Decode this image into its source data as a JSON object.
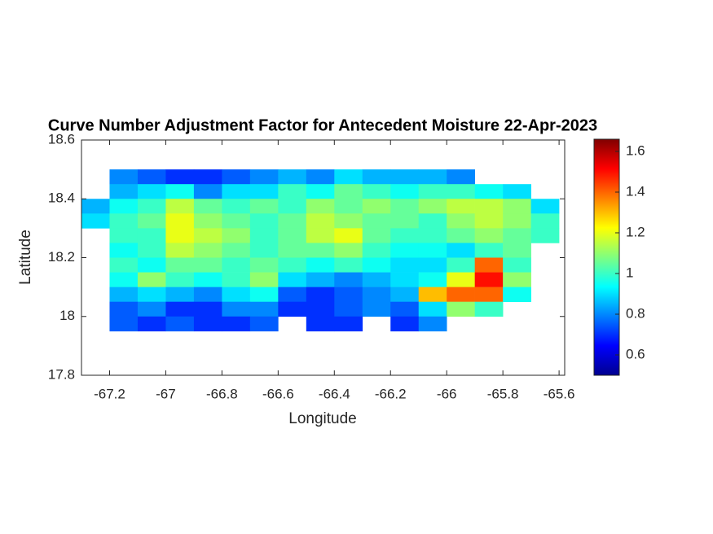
{
  "chart_data": {
    "type": "heatmap",
    "title": "Curve Number Adjustment Factor for Antecedent Moisture 22-Apr-2023",
    "x_label": "Longitude",
    "y_label": "Latitude",
    "colormap": "jet",
    "xlim": [
      -67.3,
      -65.58
    ],
    "ylim": [
      17.8,
      18.6
    ],
    "xticks": [
      -67.2,
      -67,
      -66.8,
      -66.6,
      -66.4,
      -66.2,
      -66,
      -65.8,
      -65.6
    ],
    "yticks": [
      17.8,
      18,
      18.2,
      18.4,
      18.6
    ],
    "clim": [
      0.5,
      1.66
    ],
    "cticks": [
      0.6,
      0.8,
      1,
      1.2,
      1.4,
      1.6
    ],
    "x": [
      -67.25,
      -67.15,
      -67.05,
      -66.95,
      -66.85,
      -66.75,
      -66.65,
      -66.55,
      -66.45,
      -66.35,
      -66.25,
      -66.15,
      -66.05,
      -65.95,
      -65.85,
      -65.75,
      -65.65
    ],
    "y": [
      18.475,
      18.425,
      18.375,
      18.325,
      18.275,
      18.225,
      18.175,
      18.125,
      18.075,
      18.025,
      17.975
    ],
    "z": [
      [
        null,
        0.8,
        0.75,
        0.7,
        0.7,
        0.75,
        0.8,
        0.85,
        0.8,
        0.9,
        0.85,
        0.85,
        0.85,
        0.8,
        null,
        null,
        null
      ],
      [
        null,
        0.85,
        0.9,
        0.95,
        0.8,
        0.9,
        0.9,
        1.0,
        0.95,
        1.05,
        1.0,
        0.95,
        1.0,
        1.0,
        0.95,
        0.9,
        null
      ],
      [
        0.85,
        0.95,
        1.0,
        1.15,
        1.05,
        1.0,
        1.05,
        1.0,
        1.1,
        1.05,
        1.1,
        1.05,
        1.1,
        1.15,
        1.15,
        1.1,
        0.9
      ],
      [
        0.9,
        1.0,
        1.05,
        1.2,
        1.1,
        1.05,
        1.0,
        1.05,
        1.15,
        1.1,
        1.05,
        1.05,
        1.0,
        1.1,
        1.15,
        1.1,
        1.0
      ],
      [
        null,
        1.0,
        1.0,
        1.2,
        1.15,
        1.1,
        1.0,
        1.05,
        1.15,
        1.2,
        1.05,
        1.0,
        1.0,
        1.05,
        1.1,
        1.05,
        1.0
      ],
      [
        null,
        0.95,
        1.0,
        1.15,
        1.1,
        1.05,
        1.0,
        1.05,
        1.05,
        1.1,
        1.0,
        0.95,
        0.95,
        0.9,
        1.0,
        1.05,
        null
      ],
      [
        null,
        1.0,
        0.95,
        1.05,
        1.05,
        1.0,
        1.05,
        1.0,
        0.95,
        1.0,
        0.95,
        0.9,
        0.9,
        1.0,
        1.4,
        1.0,
        null
      ],
      [
        null,
        0.95,
        1.1,
        1.0,
        0.95,
        1.0,
        1.1,
        0.9,
        0.85,
        0.8,
        0.85,
        0.9,
        0.95,
        1.2,
        1.5,
        1.1,
        null
      ],
      [
        null,
        0.85,
        0.9,
        0.85,
        0.8,
        0.9,
        0.95,
        0.75,
        0.7,
        0.75,
        0.8,
        0.85,
        1.3,
        1.4,
        1.4,
        0.95,
        null
      ],
      [
        null,
        0.75,
        0.8,
        0.7,
        0.7,
        0.8,
        0.8,
        0.7,
        0.7,
        0.75,
        0.8,
        0.75,
        0.9,
        1.1,
        1.0,
        null,
        null
      ],
      [
        null,
        0.75,
        0.7,
        0.75,
        0.7,
        0.7,
        0.75,
        null,
        0.7,
        0.7,
        null,
        0.7,
        0.8,
        null,
        null,
        null,
        null
      ]
    ]
  }
}
